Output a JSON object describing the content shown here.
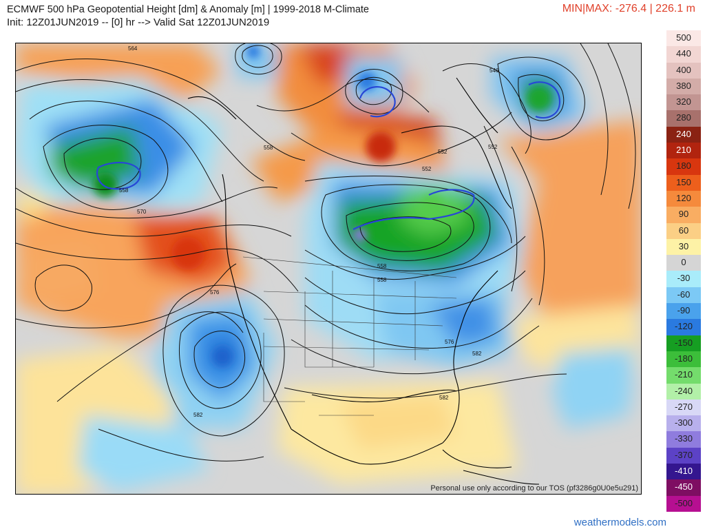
{
  "header": {
    "title": "ECMWF 500 hPa Geopotential Height [dm] & Anomaly [m] | 1999-2018 M-Climate",
    "init_line": "Init: 12Z01JUN2019 -- [0] hr --> Valid Sat 12Z01JUN2019",
    "minmax": "MIN|MAX: -276.4 | 226.1 m"
  },
  "map": {
    "tos_notice": "Personal use only according to our TOS (pf3286g0U0e5u291)",
    "contour_labels": [
      "564",
      "546",
      "552",
      "552",
      "552",
      "558",
      "558",
      "558",
      "558",
      "570",
      "576",
      "576",
      "582",
      "582",
      "582"
    ]
  },
  "legend": {
    "values": [
      "500",
      "440",
      "400",
      "380",
      "320",
      "280",
      "240",
      "210",
      "180",
      "150",
      "120",
      "90",
      "60",
      "30",
      "0",
      "-30",
      "-60",
      "-90",
      "-120",
      "-150",
      "-180",
      "-210",
      "-240",
      "-270",
      "-300",
      "-330",
      "-370",
      "-410",
      "-450",
      "-500"
    ],
    "colors": [
      "#fbe8e6",
      "#f2d6d3",
      "#e4c2bf",
      "#d3aca8",
      "#c29592",
      "#a8716c",
      "#8a2213",
      "#b1240f",
      "#d8360f",
      "#ed5f1c",
      "#f58a3c",
      "#f9ad62",
      "#fbcf85",
      "#fdf2a6",
      "#d5d5d5",
      "#a9ecfa",
      "#7cc9f5",
      "#4aa2ec",
      "#2a7ae0",
      "#169e22",
      "#3cbe3a",
      "#74dc6c",
      "#b2f0a8",
      "#d8d8f6",
      "#b8b0ec",
      "#8f7cde",
      "#5c42c6",
      "#34168f",
      "#7e0e62",
      "#b60f91"
    ]
  },
  "footer": {
    "site": "weathermodels.com"
  }
}
